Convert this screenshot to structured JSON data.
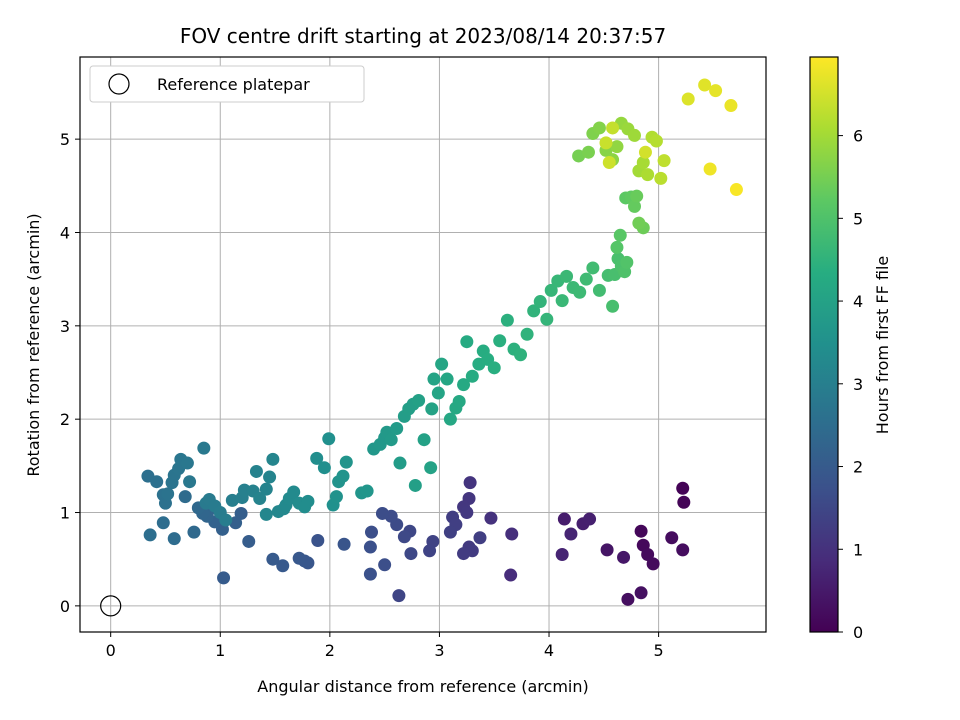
{
  "chart_data": {
    "type": "scatter",
    "title": "FOV centre drift starting at 2023/08/14 20:37:57",
    "xlabel": "Angular distance from reference (arcmin)",
    "ylabel": "Rotation from reference (arcmin)",
    "xlim": [
      -0.28,
      5.98
    ],
    "ylim": [
      -0.28,
      5.88
    ],
    "xticks": [
      0,
      1,
      2,
      3,
      4,
      5
    ],
    "xtick_labels": [
      "0",
      "1",
      "2",
      "3",
      "4",
      "5"
    ],
    "yticks": [
      0,
      1,
      2,
      3,
      4,
      5
    ],
    "ytick_labels": [
      "0",
      "1",
      "2",
      "3",
      "4",
      "5"
    ],
    "grid": true,
    "legend": {
      "placement": "upper-left",
      "entries": [
        "Reference platepar"
      ]
    },
    "reference_point": {
      "x": 0,
      "y": 0,
      "label": "Reference platepar"
    },
    "colorbar": {
      "label": "Hours from first FF file",
      "range": [
        0,
        6.95
      ],
      "ticks": [
        0,
        1,
        2,
        3,
        4,
        5,
        6
      ],
      "tick_labels": [
        "0",
        "1",
        "2",
        "3",
        "4",
        "5",
        "6"
      ],
      "colormap": "viridis"
    },
    "points": [
      [
        5.22,
        1.26,
        0.05
      ],
      [
        5.23,
        1.11,
        0.08
      ],
      [
        4.84,
        0.8,
        0.12
      ],
      [
        4.86,
        0.65,
        0.15
      ],
      [
        4.9,
        0.55,
        0.18
      ],
      [
        4.95,
        0.45,
        0.2
      ],
      [
        5.12,
        0.73,
        0.22
      ],
      [
        5.22,
        0.6,
        0.25
      ],
      [
        4.72,
        0.07,
        0.28
      ],
      [
        4.84,
        0.14,
        0.3
      ],
      [
        4.53,
        0.6,
        0.4
      ],
      [
        4.68,
        0.52,
        0.45
      ],
      [
        4.14,
        0.93,
        0.55
      ],
      [
        4.31,
        0.88,
        0.6
      ],
      [
        4.37,
        0.93,
        0.62
      ],
      [
        4.12,
        0.55,
        0.7
      ],
      [
        4.2,
        0.77,
        0.72
      ],
      [
        3.65,
        0.33,
        0.9
      ],
      [
        3.66,
        0.77,
        0.95
      ],
      [
        3.47,
        0.94,
        1.0
      ],
      [
        3.28,
        1.32,
        1.05
      ],
      [
        3.27,
        1.15,
        1.1
      ],
      [
        3.22,
        1.06,
        1.12
      ],
      [
        3.25,
        1.0,
        1.15
      ],
      [
        3.27,
        0.63,
        1.2
      ],
      [
        3.3,
        0.59,
        1.22
      ],
      [
        3.22,
        0.56,
        1.25
      ],
      [
        3.37,
        0.73,
        1.28
      ],
      [
        3.12,
        0.95,
        1.3
      ],
      [
        3.15,
        0.87,
        1.32
      ],
      [
        3.1,
        0.79,
        1.35
      ],
      [
        2.94,
        0.69,
        1.4
      ],
      [
        2.91,
        0.59,
        1.42
      ],
      [
        2.63,
        0.11,
        1.45
      ],
      [
        2.73,
        0.8,
        1.5
      ],
      [
        2.74,
        0.56,
        1.52
      ],
      [
        2.68,
        0.74,
        1.55
      ],
      [
        2.61,
        0.87,
        1.6
      ],
      [
        2.56,
        0.96,
        1.62
      ],
      [
        2.48,
        0.99,
        1.65
      ],
      [
        2.5,
        0.44,
        1.68
      ],
      [
        2.38,
        0.79,
        1.7
      ],
      [
        2.37,
        0.63,
        1.72
      ],
      [
        2.37,
        0.34,
        1.75
      ],
      [
        1.89,
        0.7,
        1.8
      ],
      [
        2.13,
        0.66,
        1.85
      ],
      [
        1.8,
        0.46,
        1.88
      ],
      [
        1.77,
        0.48,
        1.9
      ],
      [
        1.72,
        0.51,
        1.92
      ],
      [
        1.57,
        0.43,
        1.95
      ],
      [
        1.48,
        0.5,
        1.98
      ],
      [
        1.03,
        0.3,
        2.0
      ],
      [
        1.26,
        0.69,
        2.05
      ],
      [
        1.19,
        0.99,
        2.1
      ],
      [
        1.14,
        0.89,
        2.12
      ],
      [
        1.02,
        0.82,
        2.15
      ],
      [
        0.95,
        0.9,
        2.2
      ],
      [
        0.9,
        1.03,
        2.25
      ],
      [
        0.88,
        0.96,
        2.28
      ],
      [
        0.84,
        0.99,
        2.3
      ],
      [
        0.8,
        1.05,
        2.35
      ],
      [
        0.76,
        0.79,
        2.4
      ],
      [
        0.68,
        1.17,
        2.45
      ],
      [
        0.58,
        0.72,
        2.48
      ],
      [
        0.48,
        0.89,
        2.5
      ],
      [
        0.36,
        0.76,
        2.52
      ],
      [
        0.34,
        1.39,
        2.55
      ],
      [
        0.42,
        1.33,
        2.58
      ],
      [
        0.48,
        1.19,
        2.6
      ],
      [
        0.5,
        1.1,
        2.62
      ],
      [
        0.52,
        1.2,
        2.65
      ],
      [
        0.56,
        1.32,
        2.68
      ],
      [
        0.58,
        1.4,
        2.7
      ],
      [
        0.62,
        1.47,
        2.72
      ],
      [
        0.64,
        1.57,
        2.75
      ],
      [
        0.7,
        1.53,
        2.78
      ],
      [
        0.72,
        1.33,
        2.8
      ],
      [
        0.85,
        1.69,
        2.82
      ],
      [
        0.87,
        1.1,
        2.85
      ],
      [
        0.9,
        1.14,
        2.88
      ],
      [
        0.95,
        1.07,
        2.9
      ],
      [
        1.0,
        1.0,
        2.92
      ],
      [
        1.05,
        0.92,
        2.95
      ],
      [
        1.11,
        1.13,
        2.98
      ],
      [
        1.2,
        1.16,
        3.0
      ],
      [
        1.22,
        1.24,
        3.02
      ],
      [
        1.3,
        1.23,
        3.05
      ],
      [
        1.33,
        1.44,
        3.08
      ],
      [
        1.36,
        1.15,
        3.1
      ],
      [
        1.42,
        1.25,
        3.12
      ],
      [
        1.45,
        1.38,
        3.15
      ],
      [
        1.48,
        1.57,
        3.18
      ],
      [
        1.42,
        0.98,
        3.2
      ],
      [
        1.53,
        1.01,
        3.22
      ],
      [
        1.58,
        1.04,
        3.25
      ],
      [
        1.6,
        1.08,
        3.28
      ],
      [
        1.63,
        1.15,
        3.3
      ],
      [
        1.67,
        1.22,
        3.32
      ],
      [
        1.72,
        1.1,
        3.35
      ],
      [
        1.77,
        1.06,
        3.38
      ],
      [
        1.8,
        1.12,
        3.4
      ],
      [
        1.88,
        1.58,
        3.42
      ],
      [
        1.95,
        1.48,
        3.45
      ],
      [
        1.99,
        1.79,
        3.48
      ],
      [
        2.03,
        1.08,
        3.5
      ],
      [
        2.06,
        1.17,
        3.52
      ],
      [
        2.08,
        1.33,
        3.55
      ],
      [
        2.12,
        1.39,
        3.58
      ],
      [
        2.15,
        1.54,
        3.6
      ],
      [
        2.29,
        1.21,
        3.62
      ],
      [
        2.34,
        1.23,
        3.65
      ],
      [
        2.4,
        1.68,
        3.68
      ],
      [
        2.46,
        1.73,
        3.7
      ],
      [
        2.5,
        1.8,
        3.72
      ],
      [
        2.52,
        1.86,
        3.75
      ],
      [
        2.56,
        1.78,
        3.78
      ],
      [
        2.61,
        1.9,
        3.8
      ],
      [
        2.64,
        1.53,
        3.82
      ],
      [
        2.68,
        2.03,
        3.85
      ],
      [
        2.72,
        2.11,
        3.88
      ],
      [
        2.76,
        2.16,
        3.9
      ],
      [
        2.78,
        1.29,
        3.92
      ],
      [
        2.81,
        2.2,
        3.95
      ],
      [
        2.86,
        1.78,
        3.98
      ],
      [
        2.92,
        1.48,
        4.0
      ],
      [
        2.93,
        2.11,
        4.02
      ],
      [
        2.95,
        2.43,
        4.05
      ],
      [
        2.99,
        2.28,
        4.08
      ],
      [
        3.02,
        2.59,
        4.1
      ],
      [
        3.07,
        2.43,
        4.12
      ],
      [
        3.1,
        2.0,
        4.15
      ],
      [
        3.15,
        2.12,
        4.18
      ],
      [
        3.18,
        2.19,
        4.2
      ],
      [
        3.22,
        2.37,
        4.22
      ],
      [
        3.25,
        2.83,
        4.25
      ],
      [
        3.3,
        2.46,
        4.28
      ],
      [
        3.36,
        2.59,
        4.3
      ],
      [
        3.4,
        2.73,
        4.32
      ],
      [
        3.44,
        2.64,
        4.35
      ],
      [
        3.5,
        2.55,
        4.38
      ],
      [
        3.55,
        2.84,
        4.4
      ],
      [
        3.62,
        3.06,
        4.42
      ],
      [
        3.68,
        2.75,
        4.45
      ],
      [
        3.74,
        2.69,
        4.48
      ],
      [
        3.8,
        2.91,
        4.5
      ],
      [
        3.86,
        3.16,
        4.52
      ],
      [
        3.92,
        3.26,
        4.55
      ],
      [
        3.98,
        3.07,
        4.58
      ],
      [
        4.02,
        3.38,
        4.6
      ],
      [
        4.08,
        3.48,
        4.62
      ],
      [
        4.12,
        3.27,
        4.65
      ],
      [
        4.16,
        3.53,
        4.68
      ],
      [
        4.22,
        3.41,
        4.7
      ],
      [
        4.28,
        3.36,
        4.72
      ],
      [
        4.34,
        3.5,
        4.75
      ],
      [
        4.4,
        3.62,
        4.78
      ],
      [
        4.46,
        3.38,
        4.8
      ],
      [
        4.54,
        3.54,
        4.85
      ],
      [
        4.58,
        3.21,
        4.88
      ],
      [
        4.6,
        3.55,
        4.9
      ],
      [
        4.63,
        3.72,
        4.92
      ],
      [
        4.66,
        3.64,
        4.95
      ],
      [
        4.69,
        3.58,
        5.0
      ],
      [
        4.71,
        3.68,
        5.05
      ],
      [
        4.62,
        3.84,
        5.1
      ],
      [
        4.65,
        3.97,
        5.15
      ],
      [
        4.7,
        4.37,
        5.2
      ],
      [
        4.75,
        4.38,
        5.25
      ],
      [
        4.78,
        4.28,
        5.3
      ],
      [
        4.8,
        4.39,
        5.35
      ],
      [
        4.86,
        4.05,
        5.4
      ],
      [
        4.82,
        4.1,
        5.45
      ],
      [
        4.27,
        4.82,
        5.5
      ],
      [
        4.36,
        4.86,
        5.55
      ],
      [
        4.4,
        5.06,
        5.6
      ],
      [
        4.46,
        5.12,
        5.65
      ],
      [
        4.52,
        4.88,
        5.7
      ],
      [
        4.58,
        4.78,
        5.75
      ],
      [
        4.62,
        4.92,
        5.8
      ],
      [
        4.66,
        5.17,
        5.85
      ],
      [
        4.72,
        5.11,
        5.9
      ],
      [
        4.78,
        5.04,
        5.95
      ],
      [
        4.82,
        4.66,
        6.0
      ],
      [
        4.86,
        4.75,
        6.05
      ],
      [
        4.9,
        4.62,
        6.1
      ],
      [
        4.94,
        5.02,
        6.15
      ],
      [
        4.98,
        4.98,
        6.2
      ],
      [
        5.02,
        4.58,
        6.25
      ],
      [
        5.05,
        4.77,
        6.3
      ],
      [
        4.58,
        5.12,
        6.35
      ],
      [
        4.52,
        4.96,
        6.4
      ],
      [
        4.55,
        4.75,
        6.45
      ],
      [
        4.88,
        4.86,
        6.5
      ],
      [
        5.27,
        5.43,
        6.6
      ],
      [
        5.42,
        5.58,
        6.65
      ],
      [
        5.52,
        5.52,
        6.7
      ],
      [
        5.66,
        5.36,
        6.75
      ],
      [
        5.47,
        4.68,
        6.8
      ],
      [
        5.71,
        4.46,
        6.9
      ]
    ]
  }
}
